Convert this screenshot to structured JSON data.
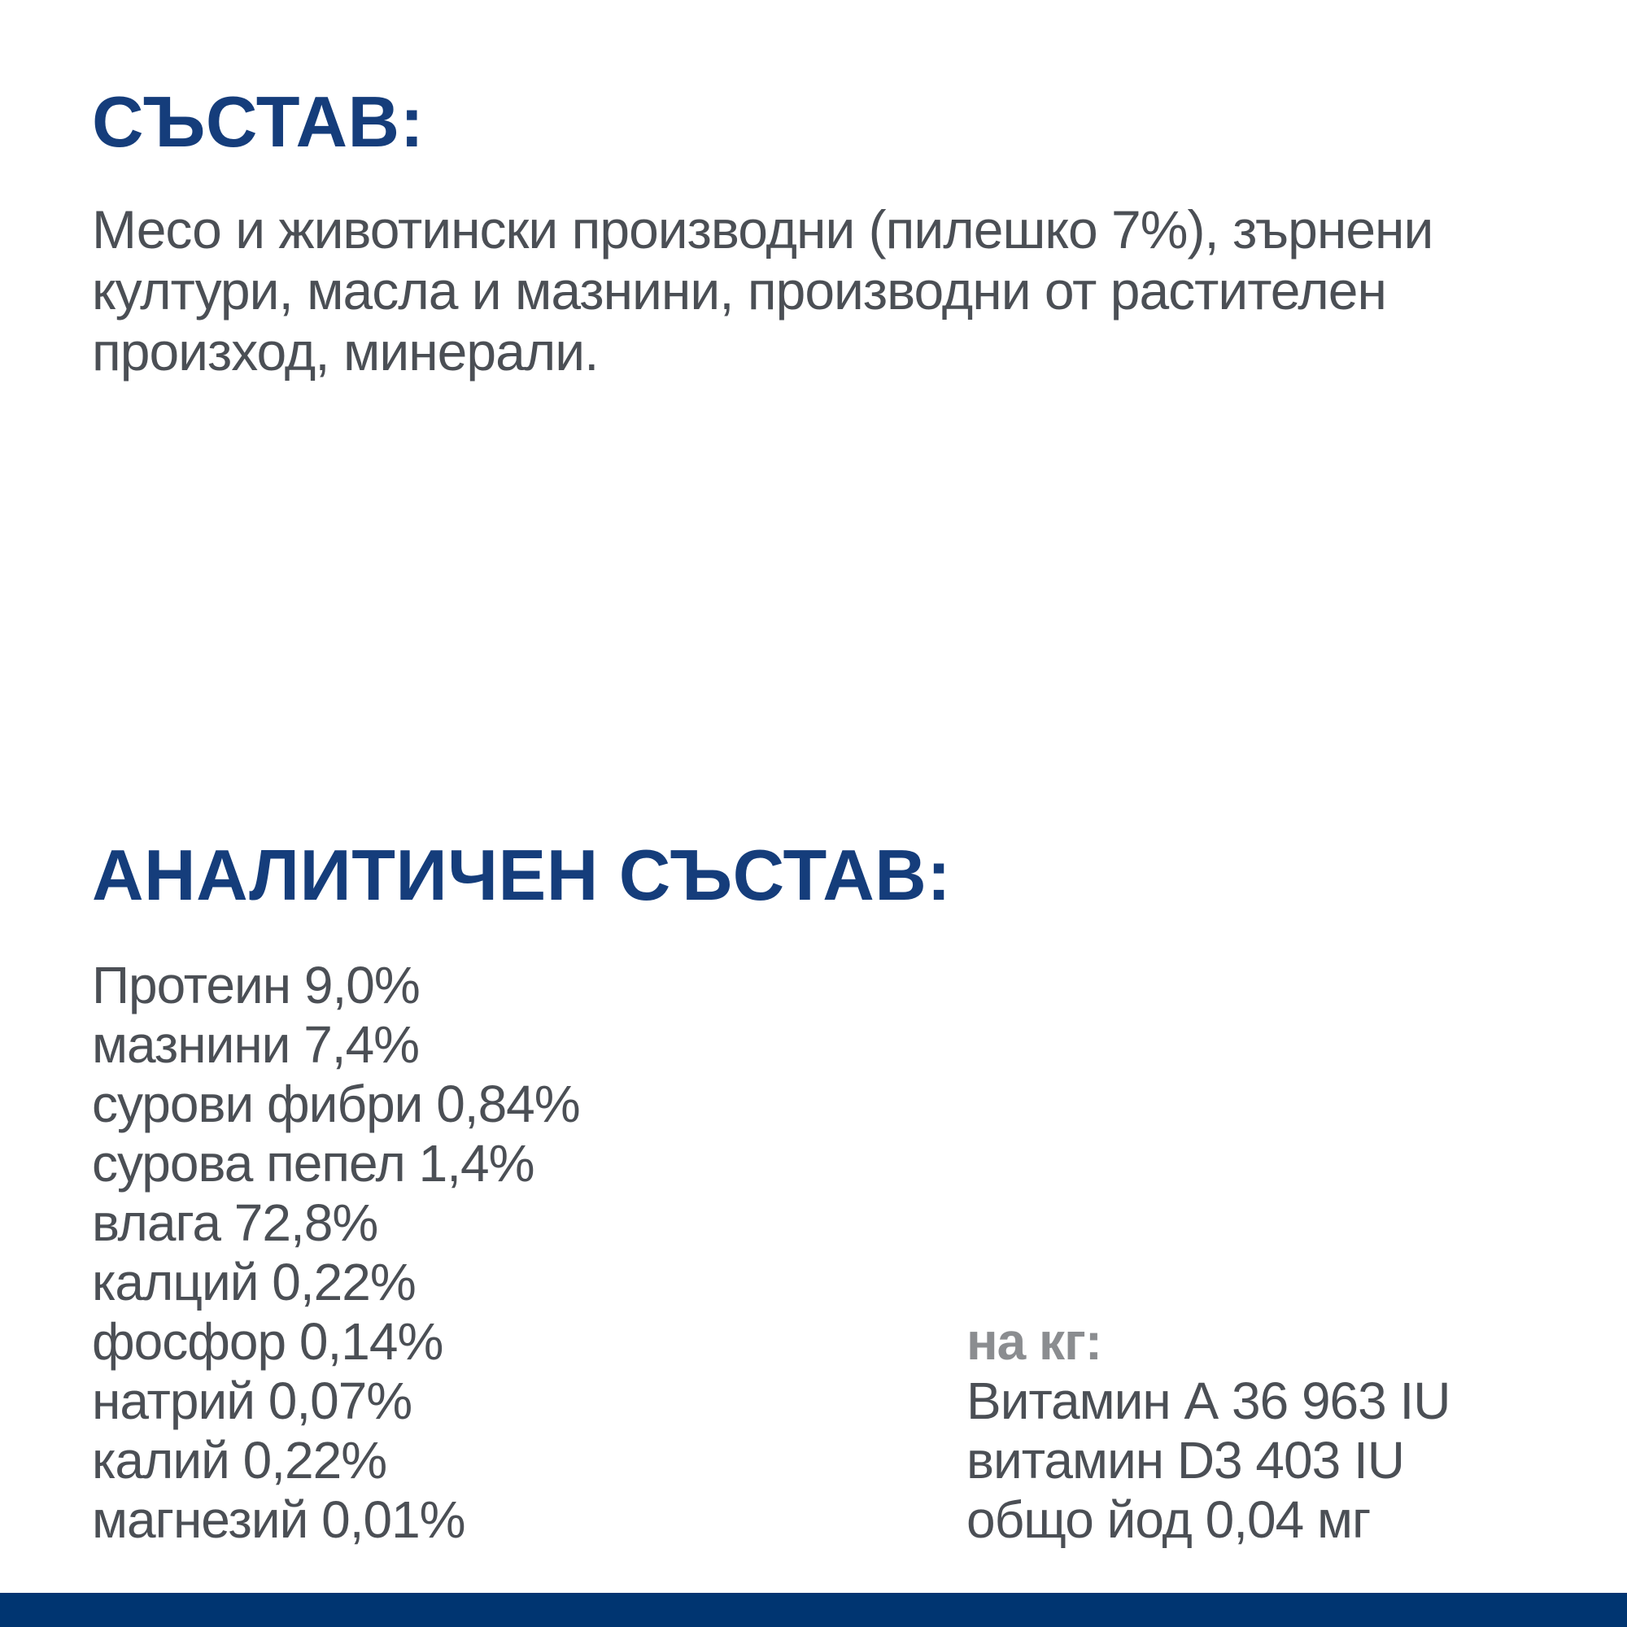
{
  "page": {
    "background_color": "#ffffff",
    "heading_color": "#153d7b",
    "body_text_color": "#4b4f55",
    "muted_label_color": "#8b8d90",
    "footer_bar_color": "#003571"
  },
  "composition": {
    "heading": "СЪСТАВ:",
    "body_lines": [
      "Месо и животински производни (пилешко 7%), зърнени",
      "култури, масла и мазнини, производни от растителен",
      "произход, минерали."
    ]
  },
  "analysis": {
    "heading": "АНАЛИТИЧЕН СЪСТАВ:",
    "nutrients": [
      {
        "label": "Протеин",
        "value": "9,0%"
      },
      {
        "label": "мазнини",
        "value": "7,4%"
      },
      {
        "label": "сурови фибри",
        "value": "0,84%"
      },
      {
        "label": "сурова пепел",
        "value": "1,4%"
      },
      {
        "label": "влага",
        "value": "72,8%"
      },
      {
        "label": "калций",
        "value": "0,22%"
      },
      {
        "label": "фосфор",
        "value": "0,14%"
      },
      {
        "label": "натрий",
        "value": "0,07%"
      },
      {
        "label": "калий",
        "value": "0,22%"
      },
      {
        "label": "магнезий",
        "value": "0,01%"
      }
    ],
    "per_kg": {
      "heading": "на кг:",
      "items": [
        {
          "label": "Витамин А",
          "value": "36 963 IU"
        },
        {
          "label": "витамин D3",
          "value": "403 IU"
        },
        {
          "label": "общо йод",
          "value": "0,04 мг"
        }
      ]
    }
  }
}
